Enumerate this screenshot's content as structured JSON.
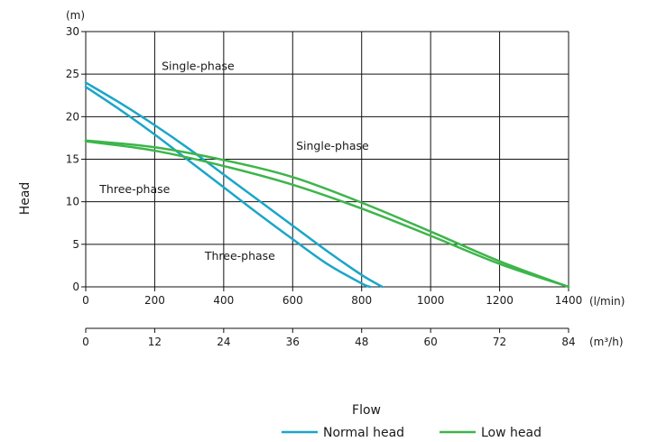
{
  "chart_data": {
    "type": "line",
    "xlabel": "Flow",
    "ylabel": "Head",
    "y_unit": "(m)",
    "x_unit": "(l/min)",
    "x2_unit": "(m³/h)",
    "xlim": [
      0,
      1400
    ],
    "ylim": [
      0,
      30
    ],
    "x_ticks": [
      0,
      200,
      400,
      600,
      800,
      1000,
      1200,
      1400
    ],
    "x_tick_labels": [
      "0",
      "200",
      "400",
      "600",
      "800",
      "1000",
      "1200",
      "1400"
    ],
    "x2_ticks": [
      0,
      12,
      24,
      36,
      48,
      60,
      72,
      84
    ],
    "x2_tick_labels": [
      "0",
      "12",
      "24",
      "36",
      "48",
      "60",
      "72",
      "84"
    ],
    "y_ticks": [
      0,
      5,
      10,
      15,
      20,
      25,
      30
    ],
    "y_tick_labels": [
      "0",
      "5",
      "10",
      "15",
      "20",
      "25",
      "30"
    ],
    "grid": true,
    "legend": "bottom-right",
    "colors": {
      "normal": "#1aa6c9",
      "low": "#3db54a"
    },
    "legend_entries": [
      {
        "label": "Normal head",
        "color": "#1aa6c9"
      },
      {
        "label": "Low head",
        "color": "#3db54a"
      }
    ],
    "series": [
      {
        "group": "normal",
        "color": "#1aa6c9",
        "x": [
          0,
          100,
          200,
          300,
          400,
          500,
          600,
          700,
          800,
          860
        ],
        "y": [
          24,
          21.6,
          19.0,
          16.2,
          13.2,
          10.2,
          7.2,
          4.2,
          1.4,
          0
        ]
      },
      {
        "group": "normal",
        "color": "#1aa6c9",
        "x": [
          0,
          100,
          200,
          300,
          400,
          500,
          600,
          700,
          800,
          825
        ],
        "y": [
          23.5,
          20.8,
          17.9,
          14.8,
          11.7,
          8.6,
          5.6,
          2.7,
          0.4,
          0
        ]
      },
      {
        "group": "low",
        "color": "#3db54a",
        "x": [
          0,
          200,
          400,
          600,
          800,
          1000,
          1200,
          1400
        ],
        "y": [
          17.2,
          16.4,
          14.9,
          12.9,
          9.9,
          6.5,
          3.0,
          0
        ]
      },
      {
        "group": "low",
        "color": "#3db54a",
        "x": [
          0,
          200,
          400,
          600,
          800,
          1000,
          1200,
          1400
        ],
        "y": [
          17.1,
          16.0,
          14.2,
          12.0,
          9.2,
          6.0,
          2.7,
          0
        ]
      }
    ],
    "annotations": [
      {
        "text": "Single-phase",
        "x": 220,
        "y": 25.5
      },
      {
        "text": "Single-phase",
        "x": 610,
        "y": 16.1
      },
      {
        "text": "Three-phase",
        "x": 40,
        "y": 11.0
      },
      {
        "text": "Three-phase",
        "x": 345,
        "y": 3.2
      }
    ]
  }
}
